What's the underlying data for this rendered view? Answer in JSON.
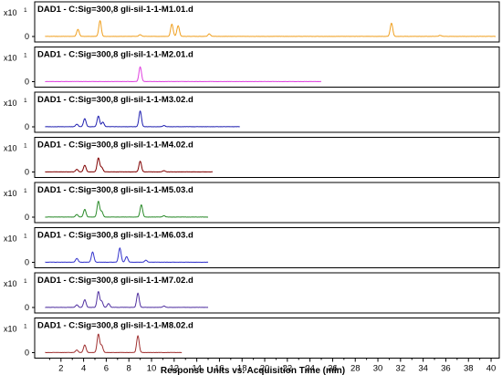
{
  "chart_data": {
    "type": "line",
    "xlabel": "Response Units vs. Acquisition Time (min)",
    "xlim": [
      0,
      40.4
    ],
    "x_ticks": [
      2,
      4,
      6,
      8,
      10,
      12,
      14,
      16,
      18,
      20,
      22,
      24,
      26,
      28,
      30,
      32,
      34,
      36,
      38,
      40
    ],
    "y_scale_label": "x10",
    "y_scale_exponent": "1",
    "y_tick_label": "0",
    "panels": [
      {
        "title": "DAD1 - C:Sig=300,8 gli-sil-1-1-M1.01.d",
        "color": "#f0a020",
        "x_end": 40.4,
        "peaks": [
          [
            3.5,
            0.28
          ],
          [
            5.45,
            0.62
          ],
          [
            9.0,
            0.07
          ],
          [
            11.8,
            0.48
          ],
          [
            12.35,
            0.42
          ],
          [
            15.1,
            0.1
          ],
          [
            31.2,
            0.52
          ],
          [
            35.5,
            0.04
          ]
        ]
      },
      {
        "title": "DAD1 - C:Sig=300,8 gli-sil-1-1-M2.01.d",
        "color": "#e040e0",
        "x_end": 25.0,
        "peaks": [
          [
            9.0,
            0.58
          ]
        ]
      },
      {
        "title": "DAD1 - C:Sig=300,8 gli-sil-1-1-M3.02.d",
        "color": "#2020b0",
        "x_end": 17.8,
        "peaks": [
          [
            3.4,
            0.1
          ],
          [
            4.1,
            0.32
          ],
          [
            5.3,
            0.42
          ],
          [
            5.7,
            0.18
          ],
          [
            9.0,
            0.62
          ],
          [
            11.1,
            0.05
          ]
        ]
      },
      {
        "title": "DAD1 - C:Sig=300,8 gli-sil-1-1-M4.02.d",
        "color": "#800000",
        "x_end": 15.4,
        "peaks": [
          [
            3.4,
            0.1
          ],
          [
            4.1,
            0.26
          ],
          [
            5.3,
            0.55
          ],
          [
            5.6,
            0.18
          ],
          [
            9.0,
            0.42
          ],
          [
            11.1,
            0.05
          ]
        ]
      },
      {
        "title": "DAD1 - C:Sig=300,8 gli-sil-1-1-M5.03.d",
        "color": "#2a8a2a",
        "x_end": 15.0,
        "peaks": [
          [
            3.4,
            0.1
          ],
          [
            4.1,
            0.3
          ],
          [
            5.3,
            0.62
          ],
          [
            5.6,
            0.22
          ],
          [
            9.1,
            0.48
          ],
          [
            11.1,
            0.05
          ]
        ]
      },
      {
        "title": "DAD1 - C:Sig=300,8 gli-sil-1-1-M6.03.d",
        "color": "#3333cc",
        "x_end": 15.0,
        "peaks": [
          [
            3.4,
            0.15
          ],
          [
            4.8,
            0.4
          ],
          [
            7.2,
            0.56
          ],
          [
            7.8,
            0.22
          ],
          [
            9.5,
            0.08
          ]
        ]
      },
      {
        "title": "DAD1 - C:Sig=300,8 gli-sil-1-1-M7.02.d",
        "color": "#5030a0",
        "x_end": 15.0,
        "peaks": [
          [
            3.4,
            0.1
          ],
          [
            4.1,
            0.3
          ],
          [
            5.3,
            0.62
          ],
          [
            5.6,
            0.24
          ],
          [
            6.2,
            0.15
          ],
          [
            8.8,
            0.56
          ],
          [
            11.1,
            0.05
          ]
        ]
      },
      {
        "title": "DAD1 - C:Sig=300,8 gli-sil-1-1-M8.02.d",
        "color": "#a03030",
        "x_end": 12.7,
        "peaks": [
          [
            3.4,
            0.1
          ],
          [
            4.1,
            0.3
          ],
          [
            5.3,
            0.72
          ],
          [
            5.6,
            0.28
          ],
          [
            8.8,
            0.66
          ]
        ]
      }
    ]
  }
}
